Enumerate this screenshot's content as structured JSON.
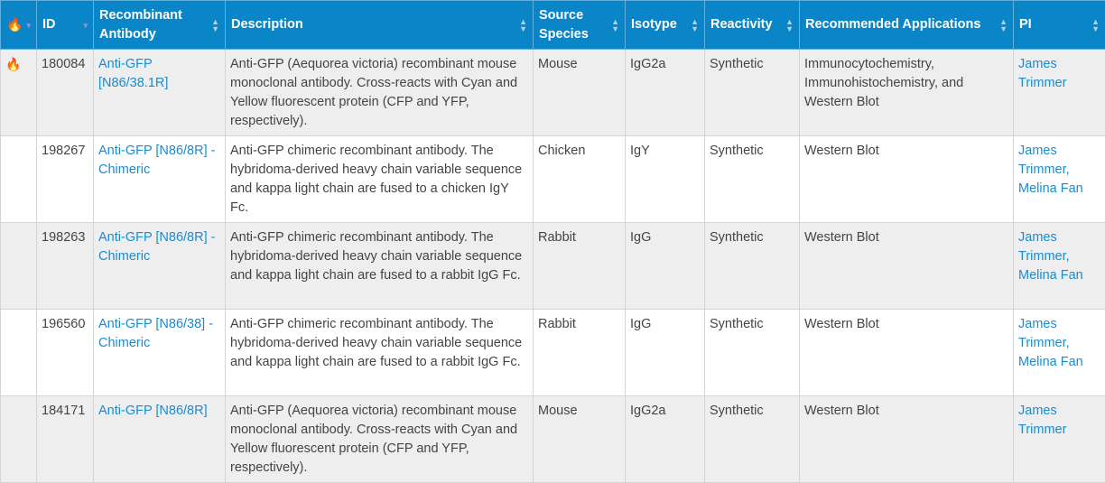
{
  "columns": [
    "",
    "ID",
    "Recombinant Antibody",
    "Description",
    "Source Species",
    "Isotype",
    "Reactivity",
    "Recommended Applications",
    "PI"
  ],
  "colors": {
    "header": "#0a85c7",
    "link": "#1a8ccc",
    "flame": "#f39a1d"
  },
  "rows": [
    {
      "hot": true,
      "id": "180084",
      "antibody": "Anti-GFP [N86/38.1R]",
      "description": "Anti-GFP (Aequorea victoria) recombinant mouse monoclonal antibody. Cross-reacts with Cyan and Yellow fluorescent protein (CFP and YFP, respectively).",
      "species": "Mouse",
      "isotype": "IgG2a",
      "reactivity": "Synthetic",
      "applications": "Immunocytochemistry, Immunohistochemistry, and Western Blot",
      "pi": "James Trimmer"
    },
    {
      "hot": false,
      "id": "198267",
      "antibody": "Anti-GFP [N86/8R] - Chimeric",
      "description": "Anti-GFP chimeric recombinant antibody. The hybridoma-derived heavy chain variable sequence and kappa light chain are fused to a chicken IgY Fc.",
      "species": "Chicken",
      "isotype": "IgY",
      "reactivity": "Synthetic",
      "applications": "Western Blot",
      "pi": "James Trimmer, Melina Fan"
    },
    {
      "hot": false,
      "id": "198263",
      "antibody": "Anti-GFP [N86/8R] - Chimeric",
      "description": "Anti-GFP chimeric recombinant antibody. The hybridoma-derived heavy chain variable sequence and kappa light chain are fused to a rabbit IgG Fc.",
      "species": "Rabbit",
      "isotype": "IgG",
      "reactivity": "Synthetic",
      "applications": "Western Blot",
      "pi": "James Trimmer, Melina Fan"
    },
    {
      "hot": false,
      "id": "196560",
      "antibody": "Anti-GFP [N86/38] - Chimeric",
      "description": "Anti-GFP chimeric recombinant antibody. The hybridoma-derived heavy chain variable sequence and kappa light chain are fused to a rabbit IgG Fc.",
      "species": "Rabbit",
      "isotype": "IgG",
      "reactivity": "Synthetic",
      "applications": "Western Blot",
      "pi": "James Trimmer, Melina Fan"
    },
    {
      "hot": false,
      "id": "184171",
      "antibody": "Anti-GFP [N86/8R]",
      "description": "Anti-GFP (Aequorea victoria) recombinant mouse monoclonal antibody. Cross-reacts with Cyan and Yellow fluorescent protein (CFP and YFP, respectively).",
      "species": "Mouse",
      "isotype": "IgG2a",
      "reactivity": "Synthetic",
      "applications": "Western Blot",
      "pi": "James Trimmer"
    }
  ]
}
